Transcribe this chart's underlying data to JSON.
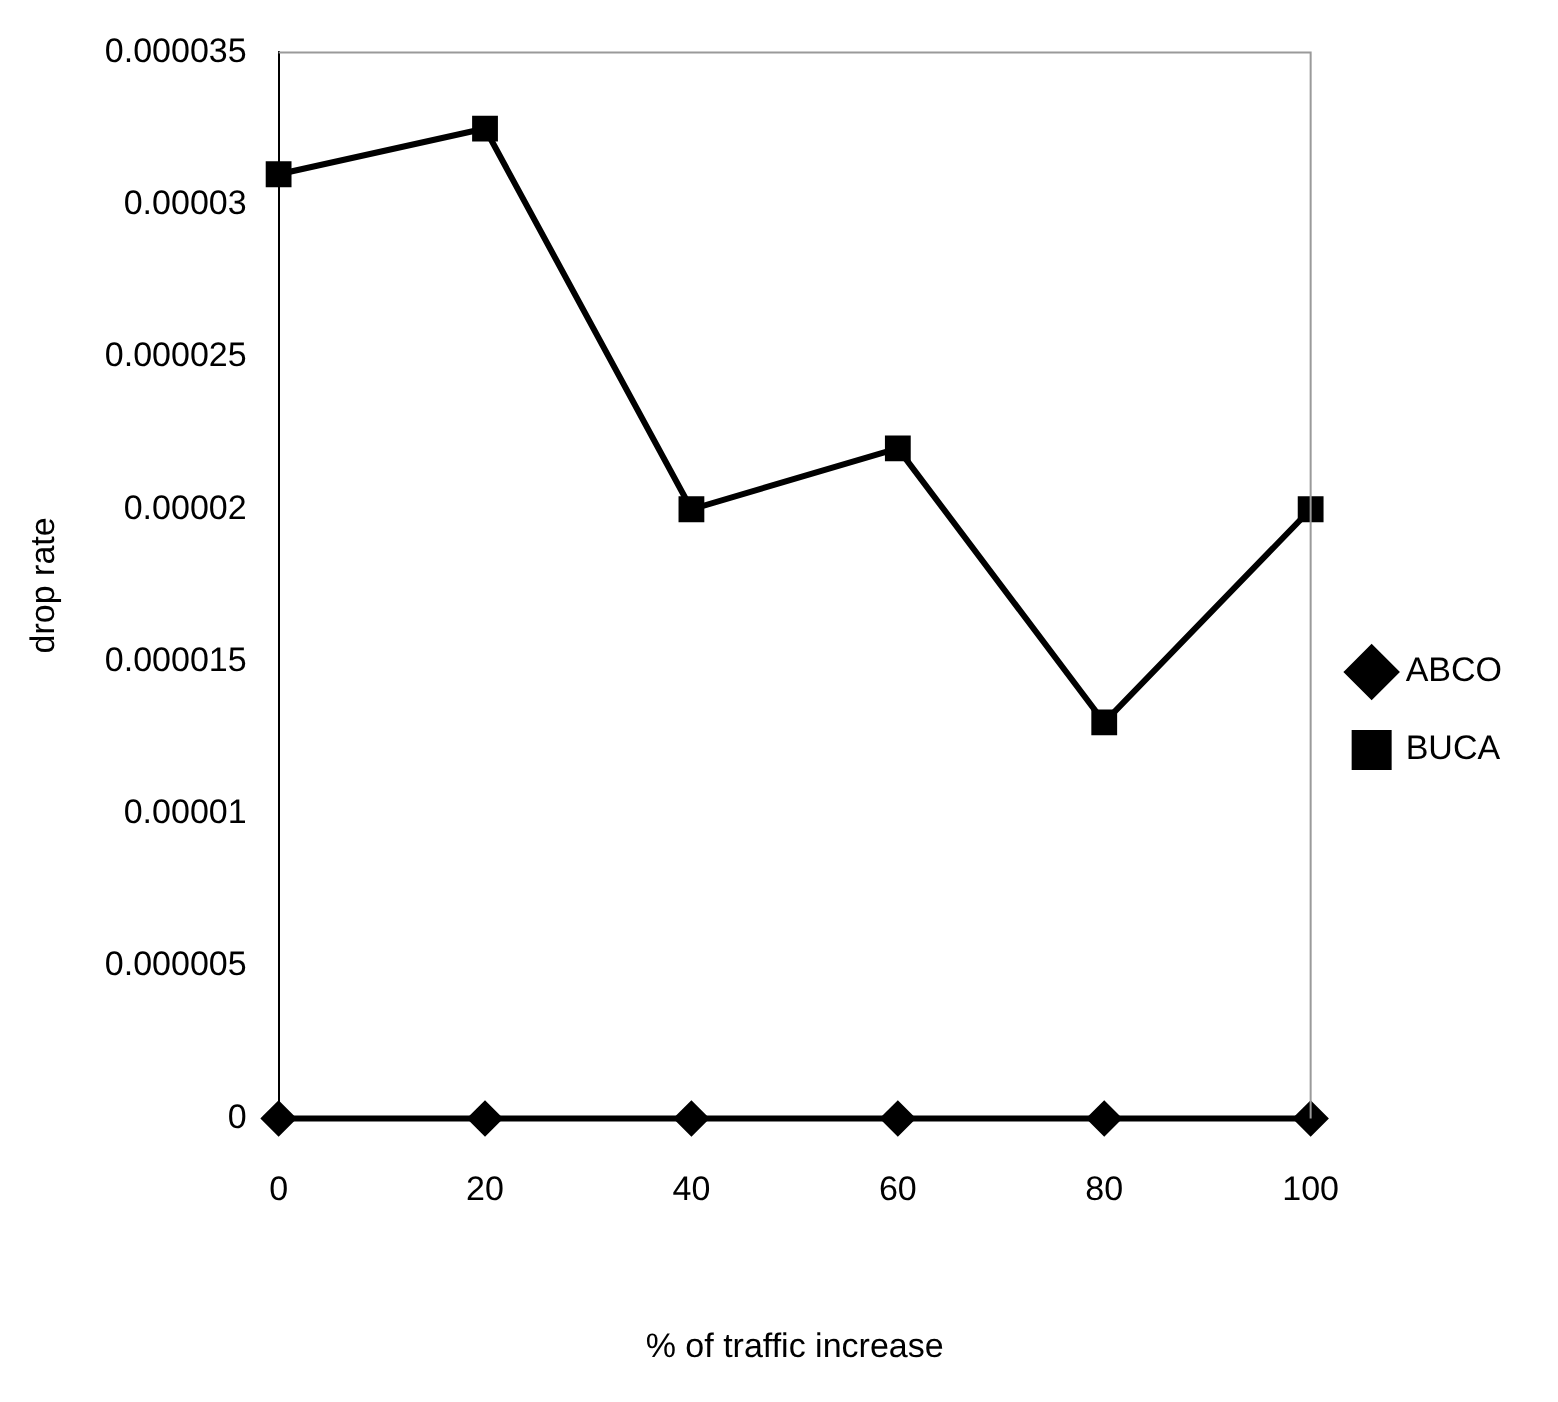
{
  "chart_data": {
    "type": "line",
    "xlabel": "% of traffic increase",
    "ylabel": "drop rate",
    "categories": [
      "0",
      "20",
      "40",
      "60",
      "80",
      "100"
    ],
    "series": [
      {
        "name": "ABCO",
        "color": "#000000",
        "marker": "diamond",
        "values": [
          0,
          0,
          0,
          0,
          0,
          0
        ]
      },
      {
        "name": "BUCA",
        "color": "#000000",
        "marker": "square",
        "values": [
          3.1e-05,
          3.25e-05,
          2e-05,
          2.2e-05,
          1.3e-05,
          2e-05
        ]
      }
    ],
    "ylim": [
      0,
      3.5e-05
    ],
    "yticks": [
      {
        "value": 0,
        "label": "0"
      },
      {
        "value": 5e-06,
        "label": "0.000005"
      },
      {
        "value": 1e-05,
        "label": "0.00001"
      },
      {
        "value": 1.5e-05,
        "label": "0.000015"
      },
      {
        "value": 2e-05,
        "label": "0.00002"
      },
      {
        "value": 2.5e-05,
        "label": "0.000025"
      },
      {
        "value": 3e-05,
        "label": "0.00003"
      },
      {
        "value": 3.5e-05,
        "label": "0.000035"
      }
    ],
    "grid": false,
    "legend": "right"
  }
}
